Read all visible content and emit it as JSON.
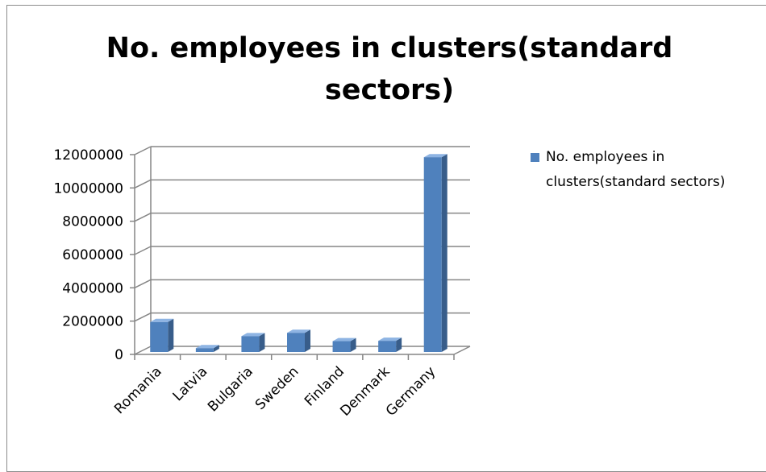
{
  "chart_data": {
    "type": "bar",
    "title": "No. employees in clusters(standard\nsectors)",
    "categories": [
      "Romania",
      "Latvia",
      "Bulgaria",
      "Sweden",
      "Finland",
      "Denmark",
      "Germany"
    ],
    "series": [
      {
        "name": "No. employees in clusters(standard sectors)",
        "values": [
          1800000,
          230000,
          950000,
          1150000,
          650000,
          670000,
          11700000
        ],
        "color": "#4f81bd"
      }
    ],
    "ylim": [
      0,
      12000000
    ],
    "yticks": [
      0,
      2000000,
      4000000,
      6000000,
      8000000,
      10000000,
      12000000
    ],
    "grid": true,
    "legend": "right",
    "three_d": true
  },
  "legend_lines": [
    "No. employees in",
    "clusters(standard sectors)"
  ]
}
